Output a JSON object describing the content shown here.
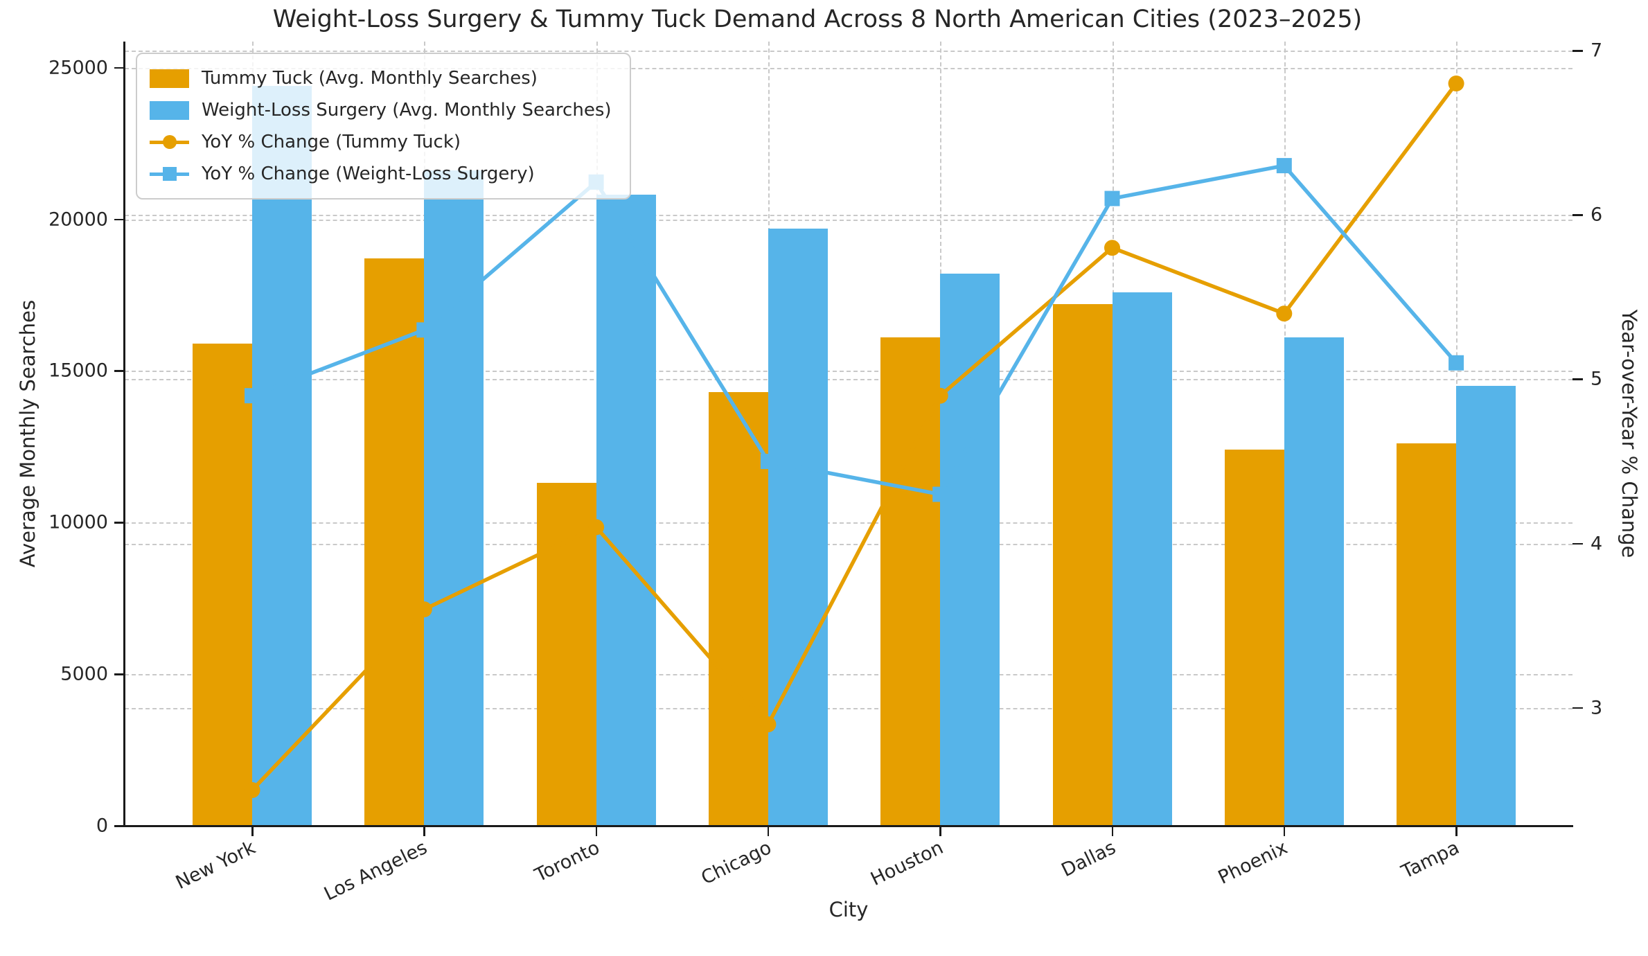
{
  "chart_data": {
    "type": "bar",
    "title": "Weight-Loss Surgery & Tummy Tuck Demand Across 8 North American Cities (2023–2025)",
    "xlabel": "City",
    "ylabel_left": "Average Monthly Searches",
    "ylabel_right": "Year-over-Year % Change",
    "categories": [
      "New York",
      "Los Angeles",
      "Toronto",
      "Chicago",
      "Houston",
      "Dallas",
      "Phoenix",
      "Tampa"
    ],
    "series": [
      {
        "name": "Tummy Tuck (Avg. Monthly Searches)",
        "kind": "bar",
        "axis": "left",
        "color": "#E69F00",
        "values": [
          15900,
          18700,
          11300,
          14300,
          16100,
          17200,
          12400,
          12600
        ]
      },
      {
        "name": "Weight-Loss Surgery (Avg. Monthly Searches)",
        "kind": "bar",
        "axis": "left",
        "color": "#56B4E9",
        "values": [
          24400,
          21600,
          20800,
          19700,
          18200,
          17600,
          16100,
          14500
        ]
      },
      {
        "name": "YoY % Change (Tummy Tuck)",
        "kind": "line",
        "marker": "circle",
        "axis": "right",
        "color": "#E69F00",
        "values": [
          2.5,
          3.6,
          4.1,
          2.9,
          4.9,
          5.8,
          5.4,
          6.8
        ]
      },
      {
        "name": "YoY % Change (Weight-Loss Surgery)",
        "kind": "line",
        "marker": "square",
        "axis": "right",
        "color": "#56B4E9",
        "values": [
          4.9,
          5.3,
          6.2,
          4.5,
          4.3,
          6.1,
          6.3,
          5.1
        ]
      }
    ],
    "left_axis": {
      "ticks": [
        0,
        5000,
        10000,
        15000,
        20000,
        25000
      ],
      "tick_labels": [
        "0",
        "5000",
        "10000",
        "15000",
        "20000",
        "25000"
      ],
      "range": [
        0,
        25860
      ]
    },
    "right_axis": {
      "ticks": [
        3,
        4,
        5,
        6,
        7
      ],
      "tick_labels": [
        "3",
        "4",
        "5",
        "6",
        "7"
      ],
      "range": [
        2.283,
        7.055
      ]
    },
    "grid": {
      "horizontal": "dashed at both axes ticks",
      "vertical": "dashed at each category"
    },
    "legend_position": "upper left",
    "x_tick_rotation_deg": 26
  }
}
